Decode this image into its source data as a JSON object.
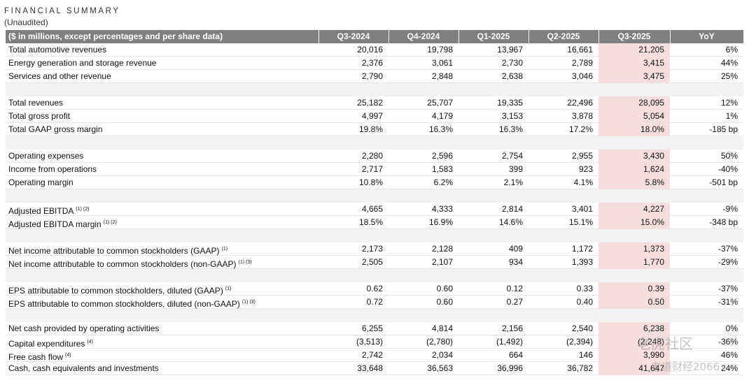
{
  "header": {
    "title": "FINANCIAL SUMMARY",
    "subtitle": "(Unaudited)"
  },
  "table": {
    "columns": [
      "($ in millions, except percentages and per share data)",
      "Q3-2024",
      "Q4-2024",
      "Q1-2025",
      "Q2-2025",
      "Q3-2025",
      "YoY"
    ],
    "groups": [
      [
        {
          "label": "Total automotive revenues",
          "values": [
            "20,016",
            "19,798",
            "13,967",
            "16,661",
            "21,205",
            "6%"
          ]
        },
        {
          "label": "Energy generation and storage revenue",
          "values": [
            "2,376",
            "3,061",
            "2,730",
            "2,789",
            "3,415",
            "44%"
          ]
        },
        {
          "label": "Services and other revenue",
          "values": [
            "2,790",
            "2,848",
            "2,638",
            "3,046",
            "3,475",
            "25%"
          ]
        }
      ],
      [
        {
          "label": "Total revenues",
          "values": [
            "25,182",
            "25,707",
            "19,335",
            "22,496",
            "28,095",
            "12%"
          ]
        },
        {
          "label": "Total gross profit",
          "values": [
            "4,997",
            "4,179",
            "3,153",
            "3,878",
            "5,054",
            "1%"
          ]
        },
        {
          "label": "Total GAAP gross margin",
          "values": [
            "19.8%",
            "16.3%",
            "16.3%",
            "17.2%",
            "18.0%",
            "-185 bp"
          ]
        }
      ],
      [
        {
          "label": "Operating expenses",
          "values": [
            "2,280",
            "2,596",
            "2,754",
            "2,955",
            "3,430",
            "50%"
          ]
        },
        {
          "label": "Income from operations",
          "values": [
            "2,717",
            "1,583",
            "399",
            "923",
            "1,624",
            "-40%"
          ]
        },
        {
          "label": "Operating margin",
          "values": [
            "10.8%",
            "6.2%",
            "2.1%",
            "4.1%",
            "5.8%",
            "-501 bp"
          ]
        }
      ],
      [
        {
          "label": "Adjusted EBITDA",
          "note": "(1) (2)",
          "values": [
            "4,665",
            "4,333",
            "2,814",
            "3,401",
            "4,227",
            "-9%"
          ]
        },
        {
          "label": "Adjusted EBITDA margin",
          "note": "(1) (2)",
          "values": [
            "18.5%",
            "16.9%",
            "14.6%",
            "15.1%",
            "15.0%",
            "-348 bp"
          ]
        }
      ],
      [
        {
          "label": "Net income attributable to common stockholders (GAAP)",
          "note": "(1)",
          "values": [
            "2,173",
            "2,128",
            "409",
            "1,172",
            "1,373",
            "-37%"
          ]
        },
        {
          "label": "Net income attributable to common stockholders (non-GAAP)",
          "note": "(1) (3)",
          "values": [
            "2,505",
            "2,107",
            "934",
            "1,393",
            "1,770",
            "-29%"
          ]
        }
      ],
      [
        {
          "label": "EPS attributable to common stockholders, diluted (GAAP)",
          "note": "(1)",
          "values": [
            "0.62",
            "0.60",
            "0.12",
            "0.33",
            "0.39",
            "-37%"
          ]
        },
        {
          "label": "EPS attributable to common stockholders, diluted (non-GAAP)",
          "note": "(1) (3)",
          "values": [
            "0.72",
            "0.60",
            "0.27",
            "0.40",
            "0.50",
            "-31%"
          ]
        }
      ],
      [
        {
          "label": "Net cash provided by operating activities",
          "values": [
            "6,255",
            "4,814",
            "2,156",
            "2,540",
            "6,238",
            "0%"
          ]
        },
        {
          "label": "Capital expenditures",
          "note": "(4)",
          "values": [
            "(3,513)",
            "(2,780)",
            "(1,492)",
            "(2,394)",
            "(2,248)",
            "-36%"
          ]
        },
        {
          "label": "Free cash flow",
          "note": "(4)",
          "values": [
            "2,742",
            "2,034",
            "664",
            "146",
            "3,990",
            "46%"
          ]
        },
        {
          "label": "Cash, cash equivalents and investments",
          "values": [
            "33,648",
            "36,563",
            "36,996",
            "36,782",
            "41,647",
            "24%"
          ]
        }
      ]
    ]
  },
  "watermark": [
    "老虎社区",
    "老道财经2066"
  ]
}
